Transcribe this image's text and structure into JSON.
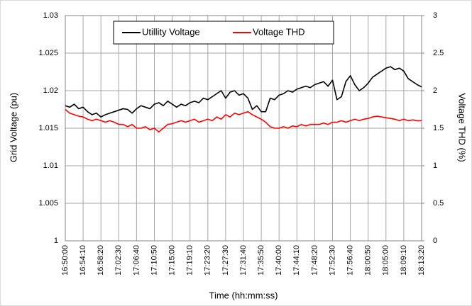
{
  "chart_data": {
    "type": "line",
    "x_label": "Time (hh:mm:ss)",
    "y_label": "Grid Voltage (pu)",
    "y2_label": "Voltage THD (%)",
    "categories": [
      "16:50:00",
      null,
      null,
      null,
      "16:54:10",
      null,
      null,
      null,
      "16:58:20",
      null,
      null,
      null,
      "17:02:30",
      null,
      null,
      null,
      "17:06:40",
      null,
      null,
      null,
      "17:10:50",
      null,
      null,
      null,
      "17:15:00",
      null,
      null,
      null,
      "17:19:10",
      null,
      null,
      null,
      "17:23:20",
      null,
      null,
      null,
      "17:27:30",
      null,
      null,
      null,
      "17:31:40",
      null,
      null,
      null,
      "17:35:50",
      null,
      null,
      null,
      "17:40:00",
      null,
      null,
      null,
      "17:44:10",
      null,
      null,
      null,
      "17:48:20",
      null,
      null,
      null,
      "17:52:30",
      null,
      null,
      null,
      "17:56:40",
      null,
      null,
      null,
      "18:00:50",
      null,
      null,
      null,
      "18:05:00",
      null,
      null,
      null,
      "18:09:10",
      null,
      null,
      null,
      "18:13:20"
    ],
    "series": [
      {
        "name": "Utillity Voltage",
        "color": "#000000",
        "axis": "y",
        "values": [
          1.018,
          1.0178,
          1.0182,
          1.0176,
          1.0178,
          1.0172,
          1.0168,
          1.017,
          1.0165,
          1.0168,
          1.017,
          1.0172,
          1.0174,
          1.0176,
          1.0175,
          1.017,
          1.0176,
          1.018,
          1.0178,
          1.0176,
          1.0182,
          1.0184,
          1.018,
          1.0186,
          1.0182,
          1.0178,
          1.0182,
          1.018,
          1.0184,
          1.0186,
          1.0184,
          1.019,
          1.0188,
          1.0192,
          1.0196,
          1.02,
          1.019,
          1.0198,
          1.02,
          1.0194,
          1.0196,
          1.019,
          1.0175,
          1.018,
          1.0172,
          1.0172,
          1.019,
          1.0188,
          1.0194,
          1.0196,
          1.02,
          1.0198,
          1.0202,
          1.0204,
          1.0206,
          1.0204,
          1.0208,
          1.021,
          1.0212,
          1.0206,
          1.0214,
          1.0188,
          1.0192,
          1.0212,
          1.022,
          1.0208,
          1.02,
          1.0204,
          1.021,
          1.0218,
          1.0222,
          1.0226,
          1.023,
          1.0232,
          1.0228,
          1.023,
          1.0226,
          1.0216,
          1.0212,
          1.0208,
          1.0205
        ]
      },
      {
        "name": "Voltage THD",
        "color": "#ff0000",
        "axis": "y2",
        "values": [
          1.75,
          1.7,
          1.68,
          1.66,
          1.65,
          1.62,
          1.6,
          1.62,
          1.6,
          1.58,
          1.6,
          1.58,
          1.55,
          1.55,
          1.52,
          1.55,
          1.5,
          1.5,
          1.52,
          1.48,
          1.5,
          1.45,
          1.5,
          1.55,
          1.56,
          1.58,
          1.6,
          1.58,
          1.6,
          1.62,
          1.58,
          1.6,
          1.62,
          1.6,
          1.65,
          1.62,
          1.68,
          1.65,
          1.7,
          1.68,
          1.7,
          1.72,
          1.68,
          1.65,
          1.62,
          1.58,
          1.52,
          1.5,
          1.5,
          1.52,
          1.5,
          1.53,
          1.52,
          1.55,
          1.53,
          1.55,
          1.55,
          1.55,
          1.57,
          1.55,
          1.58,
          1.58,
          1.6,
          1.58,
          1.6,
          1.62,
          1.6,
          1.62,
          1.63,
          1.65,
          1.66,
          1.65,
          1.64,
          1.63,
          1.62,
          1.6,
          1.62,
          1.6,
          1.61,
          1.6,
          1.6
        ]
      }
    ],
    "ylim": [
      1,
      1.03
    ],
    "yticks": [
      1,
      1.005,
      1.01,
      1.015,
      1.02,
      1.025,
      1.03
    ],
    "y2lim": [
      0,
      3
    ],
    "y2ticks": [
      0,
      0.5,
      1,
      1.5,
      2,
      2.5,
      3
    ],
    "grid": true,
    "legend": "top"
  }
}
